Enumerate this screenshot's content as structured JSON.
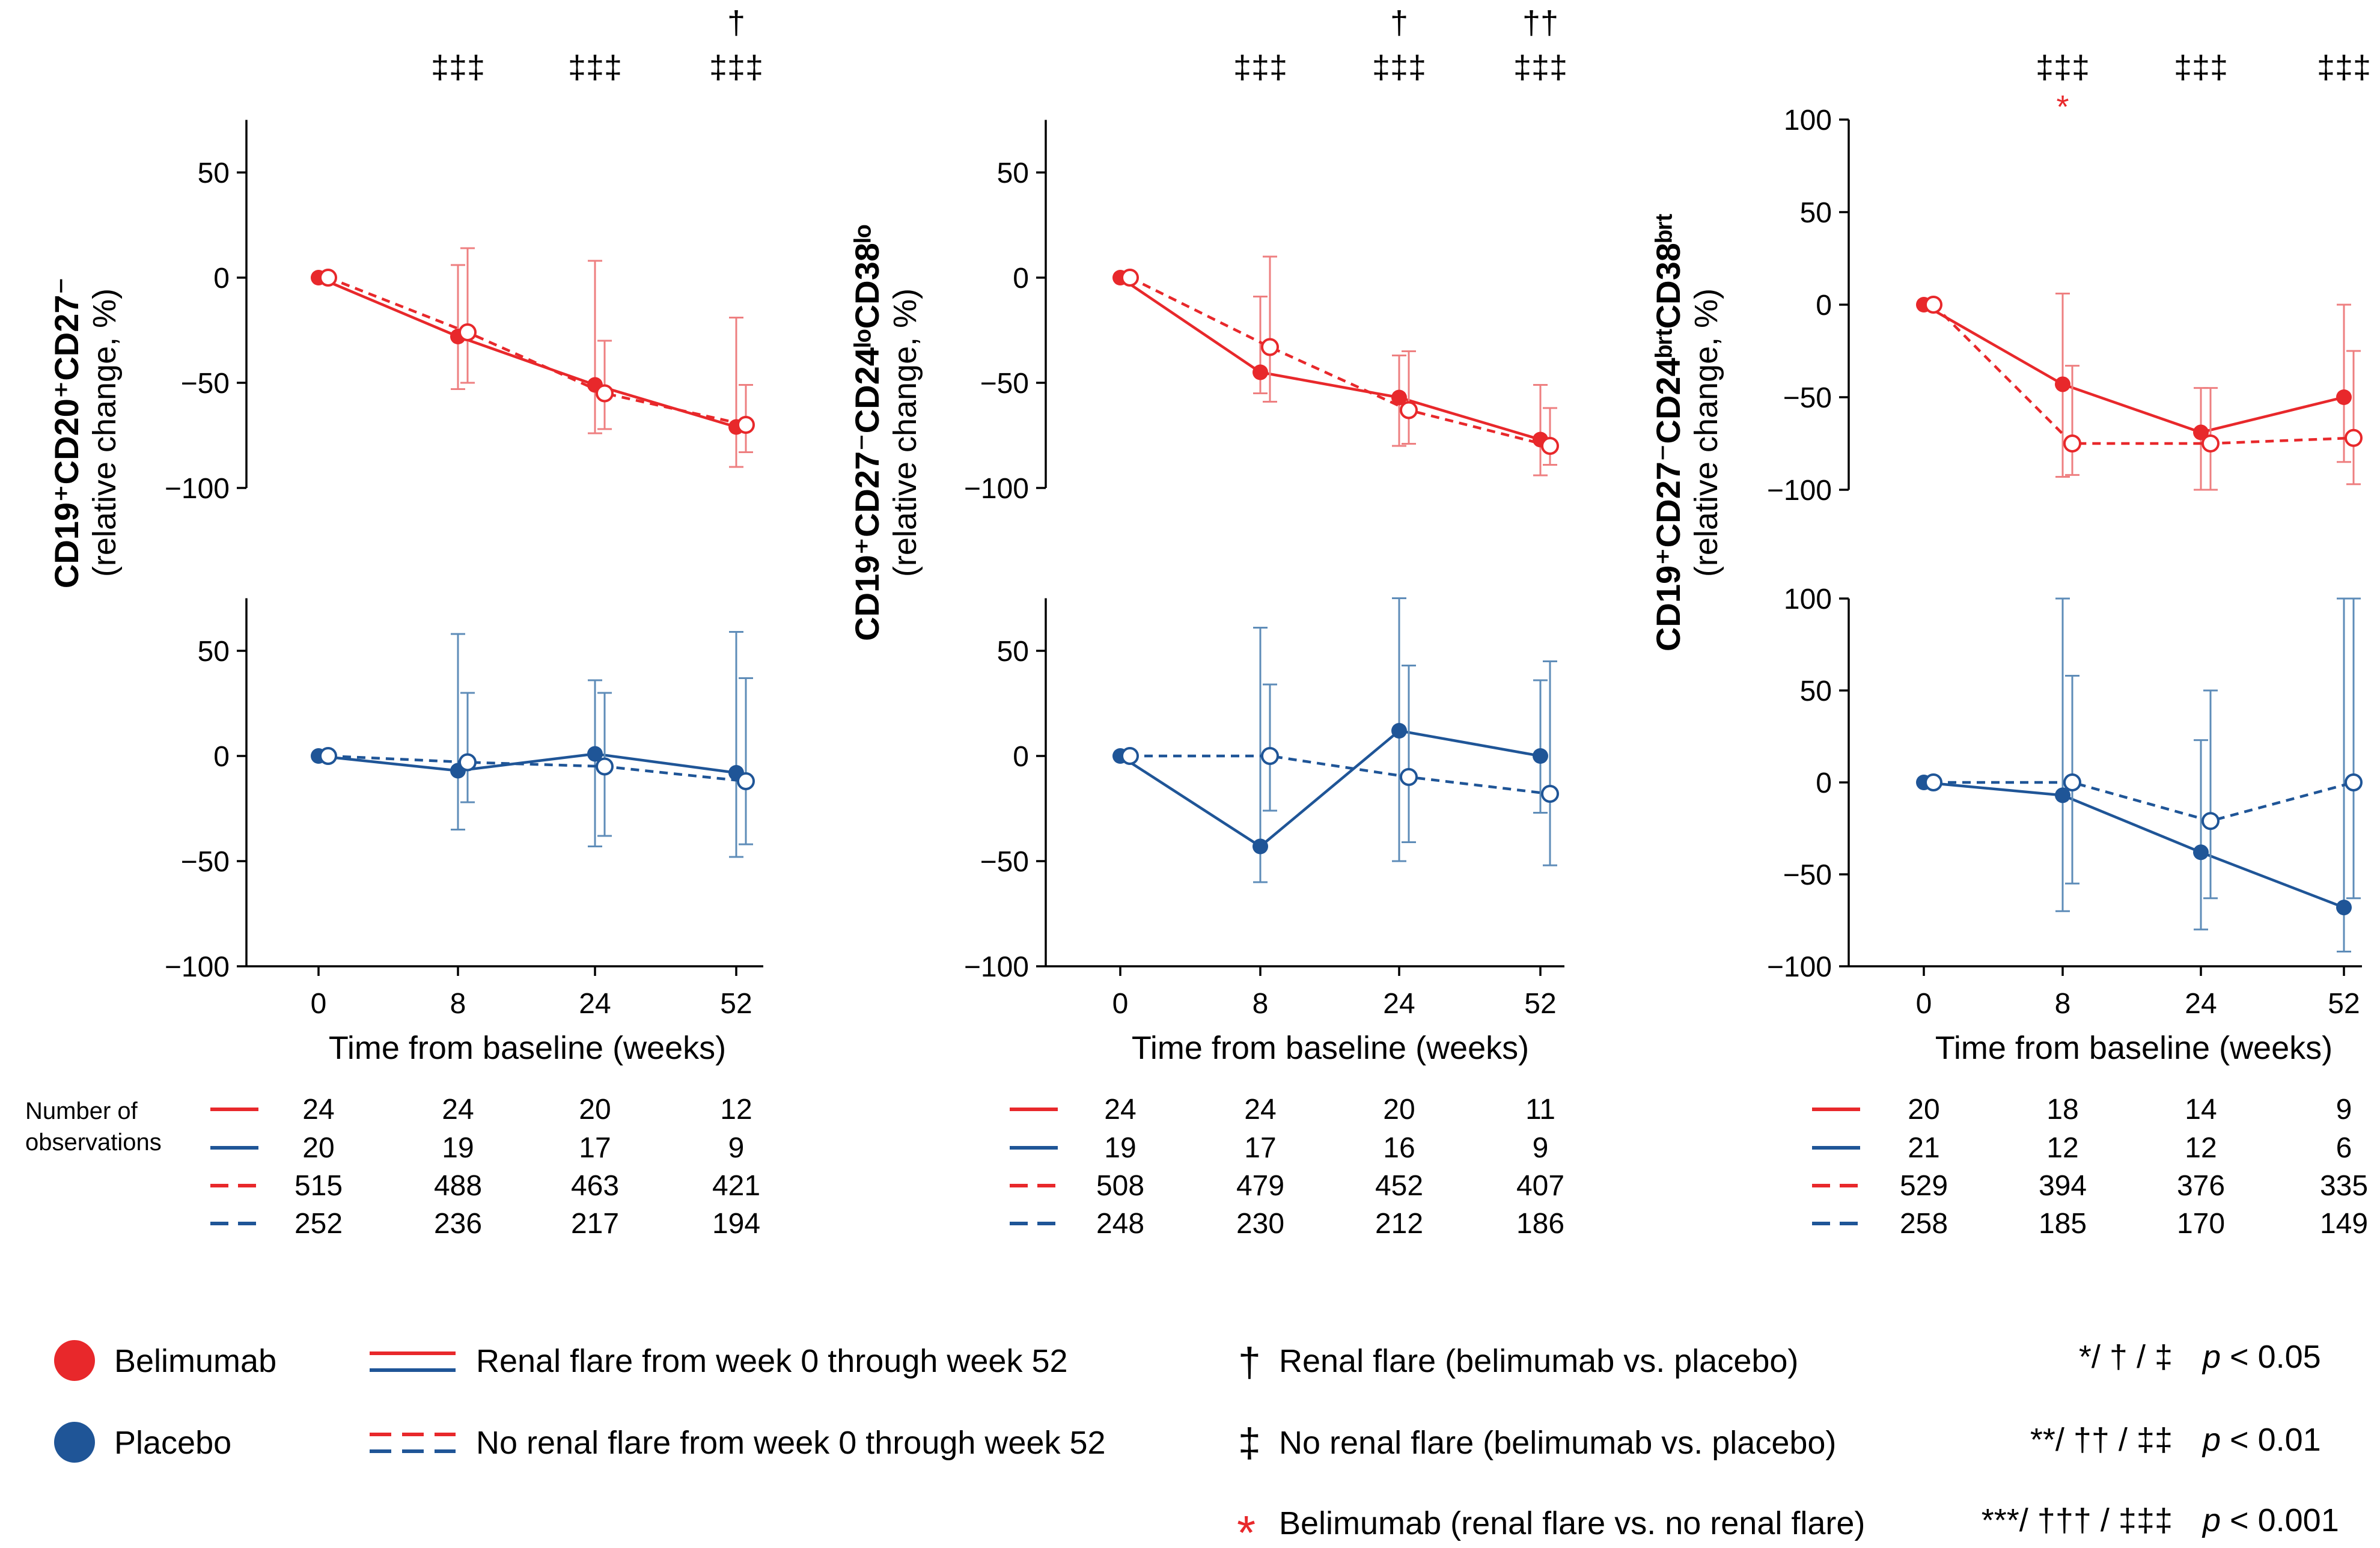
{
  "colors": {
    "belimumab": "#e8282b",
    "placebo": "#1f5597",
    "errorbar_red": "#ee7f80",
    "errorbar_blue": "#5e8cb8"
  },
  "chart_data": [
    {
      "type": "line",
      "panel": "CD19+CD20+CD27-",
      "ylabel_marker": "CD19⁺CD20⁺CD27⁻",
      "ylabel_unit": "(relative change, %)",
      "xlabel": "Time from baseline (weeks)",
      "x": [
        0,
        8,
        24,
        52
      ],
      "x_tick_labels": [
        "0",
        "8",
        "24",
        "52"
      ],
      "significance": {
        "top_row": [
          "",
          "",
          "",
          "†"
        ],
        "bottom_row": [
          "",
          "‡‡‡",
          "‡‡‡",
          "‡‡‡"
        ],
        "red_star": [
          "",
          "",
          "",
          ""
        ]
      },
      "top": {
        "ylim": [
          -100,
          75
        ],
        "yticks": [
          50,
          0,
          -50,
          -100
        ],
        "ytick_labels": [
          "50",
          "0",
          "−50",
          "−100"
        ],
        "series": [
          {
            "name": "Belimumab - Renal flare",
            "style": "solid",
            "values": [
              0,
              -28,
              -51,
              -71
            ],
            "err_low": [
              0,
              -53,
              -74,
              -90
            ],
            "err_high": [
              0,
              6,
              8,
              -19
            ]
          },
          {
            "name": "Belimumab - No renal flare",
            "style": "dashed",
            "values": [
              0,
              -26,
              -55,
              -70
            ],
            "err_low": [
              0,
              -50,
              -72,
              -83
            ],
            "err_high": [
              0,
              14,
              -30,
              -51
            ]
          }
        ]
      },
      "bottom": {
        "ylim": [
          -100,
          75
        ],
        "yticks": [
          50,
          0,
          -50,
          -100
        ],
        "ytick_labels": [
          "50",
          "0",
          "−50",
          "−100"
        ],
        "series": [
          {
            "name": "Placebo - Renal flare",
            "style": "solid",
            "values": [
              0,
              -7,
              1,
              -8
            ],
            "err_low": [
              0,
              -35,
              -43,
              -48
            ],
            "err_high": [
              0,
              58,
              36,
              59
            ]
          },
          {
            "name": "Placebo - No renal flare",
            "style": "dashed",
            "values": [
              0,
              -3,
              -5,
              -12
            ],
            "err_low": [
              0,
              -22,
              -38,
              -42
            ],
            "err_high": [
              0,
              30,
              30,
              37
            ]
          }
        ]
      },
      "observations": {
        "renal_flare_belimumab": [
          "24",
          "24",
          "20",
          "12"
        ],
        "renal_flare_placebo": [
          "20",
          "19",
          "17",
          "9"
        ],
        "no_renal_flare_belimumab": [
          "515",
          "488",
          "463",
          "421"
        ],
        "no_renal_flare_placebo": [
          "252",
          "236",
          "217",
          "194"
        ]
      }
    },
    {
      "type": "line",
      "panel": "CD19+CD27-CD24loCD38lo",
      "ylabel_marker": "CD19⁺CD27⁻CD24ˡᵒCD38ˡᵒ",
      "ylabel_unit": "(relative change, %)",
      "xlabel": "Time from baseline (weeks)",
      "x": [
        0,
        8,
        24,
        52
      ],
      "x_tick_labels": [
        "0",
        "8",
        "24",
        "52"
      ],
      "significance": {
        "top_row": [
          "",
          "",
          "†",
          "††"
        ],
        "bottom_row": [
          "",
          "‡‡‡",
          "‡‡‡",
          "‡‡‡"
        ],
        "red_star": [
          "",
          "",
          "",
          ""
        ]
      },
      "top": {
        "ylim": [
          -100,
          75
        ],
        "yticks": [
          50,
          0,
          -50,
          -100
        ],
        "ytick_labels": [
          "50",
          "0",
          "−50",
          "−100"
        ],
        "series": [
          {
            "name": "Belimumab - Renal flare",
            "style": "solid",
            "values": [
              0,
              -45,
              -57,
              -77
            ],
            "err_low": [
              0,
              -55,
              -80,
              -94
            ],
            "err_high": [
              0,
              -9,
              -37,
              -51
            ]
          },
          {
            "name": "Belimumab - No renal flare",
            "style": "dashed",
            "values": [
              0,
              -33,
              -63,
              -80
            ],
            "err_low": [
              0,
              -59,
              -79,
              -89
            ],
            "err_high": [
              0,
              10,
              -35,
              -62
            ]
          }
        ]
      },
      "bottom": {
        "ylim": [
          -100,
          75
        ],
        "yticks": [
          50,
          0,
          -50,
          -100
        ],
        "ytick_labels": [
          "50",
          "0",
          "−50",
          "−100"
        ],
        "series": [
          {
            "name": "Placebo - Renal flare",
            "style": "solid",
            "values": [
              0,
              -43,
              12,
              0
            ],
            "err_low": [
              0,
              -60,
              -50,
              -27
            ],
            "err_high": [
              0,
              61,
              75,
              36
            ]
          },
          {
            "name": "Placebo - No renal flare",
            "style": "dashed",
            "values": [
              0,
              0,
              -10,
              -18
            ],
            "err_low": [
              0,
              -26,
              -41,
              -52
            ],
            "err_high": [
              0,
              34,
              43,
              45
            ]
          }
        ]
      },
      "observations": {
        "renal_flare_belimumab": [
          "24",
          "24",
          "20",
          "11"
        ],
        "renal_flare_placebo": [
          "19",
          "17",
          "16",
          "9"
        ],
        "no_renal_flare_belimumab": [
          "508",
          "479",
          "452",
          "407"
        ],
        "no_renal_flare_placebo": [
          "248",
          "230",
          "212",
          "186"
        ]
      }
    },
    {
      "type": "line",
      "panel": "CD19+CD27-CD24brtCD38brt",
      "ylabel_marker": "CD19⁺CD27⁻CD24ᵇʳᵗCD38ᵇʳᵗ",
      "ylabel_unit": "(relative change, %)",
      "xlabel": "Time from baseline (weeks)",
      "x": [
        0,
        8,
        24,
        52
      ],
      "x_tick_labels": [
        "0",
        "8",
        "24",
        "52"
      ],
      "significance": {
        "top_row": [
          "",
          "",
          "",
          ""
        ],
        "bottom_row": [
          "",
          "‡‡‡",
          "‡‡‡",
          "‡‡‡"
        ],
        "red_star": [
          "",
          "*",
          "",
          ""
        ]
      },
      "top": {
        "ylim": [
          -100,
          100
        ],
        "yticks": [
          100,
          50,
          0,
          -50,
          -100
        ],
        "ytick_labels": [
          "100",
          "50",
          "0",
          "−50",
          "−100"
        ],
        "series": [
          {
            "name": "Belimumab - Renal flare",
            "style": "solid",
            "values": [
              0,
              -43,
              -69,
              -50
            ],
            "err_low": [
              0,
              -93,
              -100,
              -85
            ],
            "err_high": [
              0,
              6,
              -45,
              0
            ]
          },
          {
            "name": "Belimumab - No renal flare",
            "style": "dashed",
            "values": [
              0,
              -75,
              -75,
              -72
            ],
            "err_low": [
              0,
              -92,
              -100,
              -97
            ],
            "err_high": [
              0,
              -33,
              -45,
              -25
            ]
          }
        ]
      },
      "bottom": {
        "ylim": [
          -100,
          100
        ],
        "yticks": [
          100,
          50,
          0,
          -50,
          -100
        ],
        "ytick_labels": [
          "100",
          "50",
          "0",
          "−50",
          "−100"
        ],
        "series": [
          {
            "name": "Placebo - Renal flare",
            "style": "solid",
            "values": [
              0,
              -7,
              -38,
              -68
            ],
            "err_low": [
              0,
              -70,
              -80,
              -92
            ],
            "err_high": [
              0,
              100,
              23,
              100
            ]
          },
          {
            "name": "Placebo - No renal flare",
            "style": "dashed",
            "values": [
              0,
              0,
              -21,
              0
            ],
            "err_low": [
              0,
              -55,
              -63,
              -63
            ],
            "err_high": [
              0,
              58,
              50,
              100
            ]
          }
        ]
      },
      "observations": {
        "renal_flare_belimumab": [
          "20",
          "18",
          "14",
          "9"
        ],
        "renal_flare_placebo": [
          "21",
          "12",
          "12",
          "6"
        ],
        "no_renal_flare_belimumab": [
          "529",
          "394",
          "376",
          "335"
        ],
        "no_renal_flare_placebo": [
          "258",
          "185",
          "170",
          "149"
        ]
      }
    }
  ],
  "observations_label_1": "Number of",
  "observations_label_2": "observations",
  "legend": {
    "belimumab": "Belimumab",
    "placebo": "Placebo",
    "renal_flare": "Renal flare from week 0 through week 52",
    "no_renal_flare": "No renal flare from week 0 through week 52",
    "dagger_symbol": "†",
    "dagger_text": "Renal flare (belimumab vs. placebo)",
    "ddagger_symbol": "‡",
    "ddagger_text": "No renal flare (belimumab vs. placebo)",
    "star_symbol": "*",
    "star_text": "Belimumab (renal flare vs. no renal flare)",
    "sig1_symbols": "*/ † / ‡",
    "sig1_p": "p",
    "sig1_value": " < 0.05",
    "sig2_symbols": "**/ †† / ‡‡",
    "sig2_p": "p",
    "sig2_value": " < 0.01",
    "sig3_symbols": "***/ ††† / ‡‡‡",
    "sig3_p": "p",
    "sig3_value": " < 0.001"
  }
}
